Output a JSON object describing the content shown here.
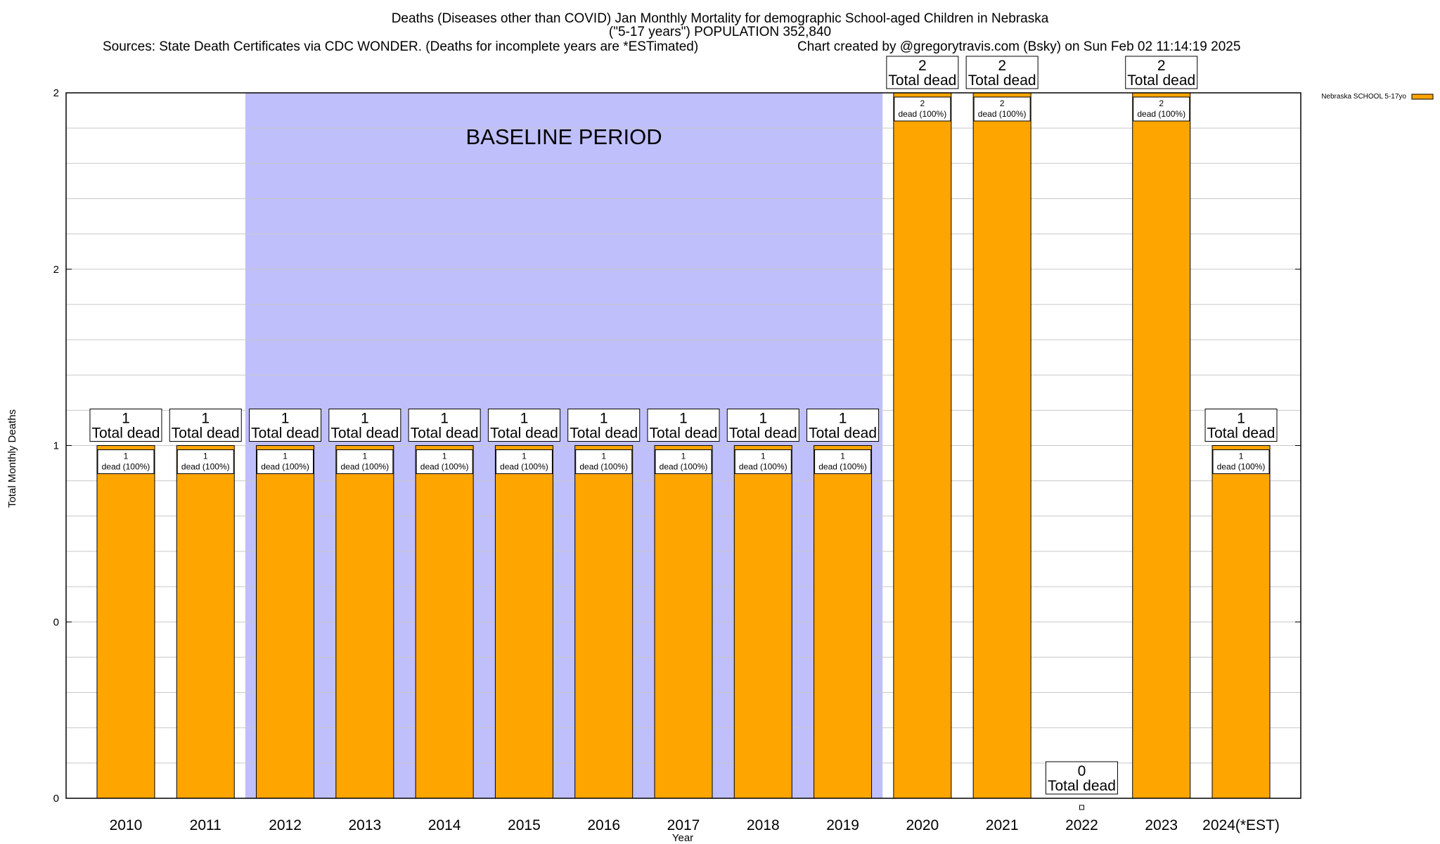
{
  "chart_data": {
    "type": "bar",
    "title": "Deaths (Diseases other than COVID) Jan Monthly Mortality for demographic School-aged Children in Nebraska",
    "subtitle": "(\"5-17 years\") POPULATION 352,840",
    "sources": "Sources: State Death Certificates via CDC WONDER. (Deaths for incomplete years are *ESTimated)",
    "credit": "Chart created by @gregorytravis.com (Bsky) on Sun Feb 02 11:14:19 2025",
    "xlabel": "Year",
    "ylabel": "Total Monthly Deaths",
    "y_tick_labels": [
      "0",
      "0",
      "1",
      "2",
      "2"
    ],
    "y_tick_values": [
      0,
      0.5,
      1,
      1.5,
      2
    ],
    "ylim": [
      0,
      2
    ],
    "grid": true,
    "legend_position": "top-right",
    "baseline_label": "BASELINE PERIOD",
    "baseline_range": [
      "2012",
      "2019"
    ],
    "categories": [
      "2010",
      "2011",
      "2012",
      "2013",
      "2014",
      "2015",
      "2016",
      "2017",
      "2018",
      "2019",
      "2020",
      "2021",
      "2022",
      "2023",
      "2024(*EST)"
    ],
    "series": [
      {
        "name": "Nebraska SCHOOL 5-17yo",
        "color": "#ffa500",
        "values": [
          1,
          1,
          1,
          1,
          1,
          1,
          1,
          1,
          1,
          1,
          2,
          2,
          0,
          2,
          1
        ]
      }
    ],
    "total_labels": [
      "1",
      "1",
      "1",
      "1",
      "1",
      "1",
      "1",
      "1",
      "1",
      "1",
      "2",
      "2",
      "0",
      "2",
      "1"
    ],
    "total_suffix": "Total dead",
    "segment_suffix": "dead (100%)",
    "colors": {
      "bar": "#ffa500",
      "baseline_fill": "#bfbffc",
      "grid": "#c8c8c8"
    }
  }
}
